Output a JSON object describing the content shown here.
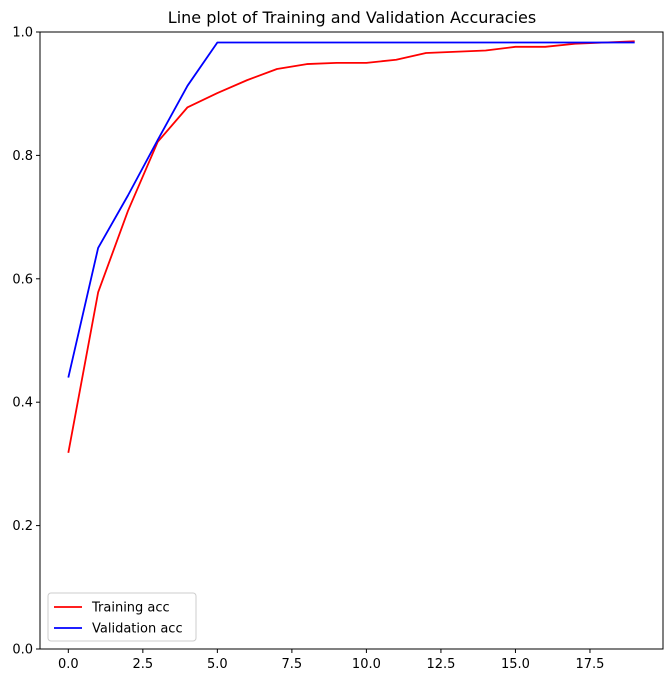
{
  "chart_data": {
    "type": "line",
    "title": "Line plot of Training and Validation Accuracies",
    "xlabel": "",
    "ylabel": "",
    "x": [
      0,
      1,
      2,
      3,
      4,
      5,
      6,
      7,
      8,
      9,
      10,
      11,
      12,
      13,
      14,
      15,
      16,
      17,
      18,
      19
    ],
    "xlim": [
      -0.95,
      19.95
    ],
    "ylim": [
      0,
      1
    ],
    "xticks": [
      "0.0",
      "2.5",
      "5.0",
      "7.5",
      "10.0",
      "12.5",
      "15.0",
      "17.5"
    ],
    "xtick_values": [
      0,
      2.5,
      5,
      7.5,
      10,
      12.5,
      15,
      17.5
    ],
    "yticks": [
      "0.0",
      "0.2",
      "0.4",
      "0.6",
      "0.8",
      "1.0"
    ],
    "ytick_values": [
      0,
      0.2,
      0.4,
      0.6,
      0.8,
      1.0
    ],
    "grid": false,
    "legend_position": "lower-left",
    "series": [
      {
        "name": "Training acc",
        "color": "#ff0000",
        "values": [
          0.318,
          0.578,
          0.71,
          0.822,
          0.878,
          0.901,
          0.922,
          0.94,
          0.948,
          0.95,
          0.95,
          0.955,
          0.966,
          0.968,
          0.97,
          0.976,
          0.976,
          0.981,
          0.983,
          0.985
        ]
      },
      {
        "name": "Validation acc",
        "color": "#0000ff",
        "values": [
          0.44,
          0.65,
          0.735,
          0.825,
          0.913,
          0.983,
          0.983,
          0.983,
          0.983,
          0.983,
          0.983,
          0.983,
          0.983,
          0.983,
          0.983,
          0.983,
          0.983,
          0.983,
          0.983,
          0.983
        ]
      }
    ]
  }
}
